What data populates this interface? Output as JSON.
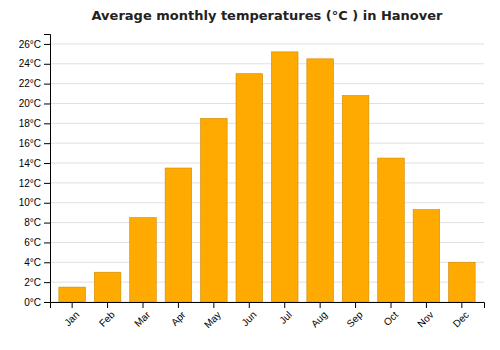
{
  "chart_data": {
    "type": "bar",
    "title": "Average monthly temperatures (°C ) in Hanover",
    "categories": [
      "Jan",
      "Feb",
      "Mar",
      "Apr",
      "May",
      "Jun",
      "Jul",
      "Aug",
      "Sep",
      "Oct",
      "Nov",
      "Dec"
    ],
    "values": [
      1.5,
      3.0,
      8.5,
      13.5,
      18.5,
      23.0,
      25.2,
      24.5,
      20.8,
      14.5,
      9.3,
      4.0
    ],
    "color": "#FFAA00",
    "ylim": [
      0,
      27
    ],
    "yticks": [
      {
        "value": 0,
        "label": "0°C"
      },
      {
        "value": 2,
        "label": "2°C"
      },
      {
        "value": 4,
        "label": "4°C"
      },
      {
        "value": 6,
        "label": "6°C"
      },
      {
        "value": 8,
        "label": "8°C"
      },
      {
        "value": 10,
        "label": "10°C"
      },
      {
        "value": 12,
        "label": "12°C"
      },
      {
        "value": 14,
        "label": "14°C"
      },
      {
        "value": 16,
        "label": "16°C"
      },
      {
        "value": 18,
        "label": "18°C"
      },
      {
        "value": 20,
        "label": "20°C"
      },
      {
        "value": 22,
        "label": "22°C"
      },
      {
        "value": 24,
        "label": "24°C"
      },
      {
        "value": 26,
        "label": "26°C"
      }
    ],
    "grid": true
  }
}
